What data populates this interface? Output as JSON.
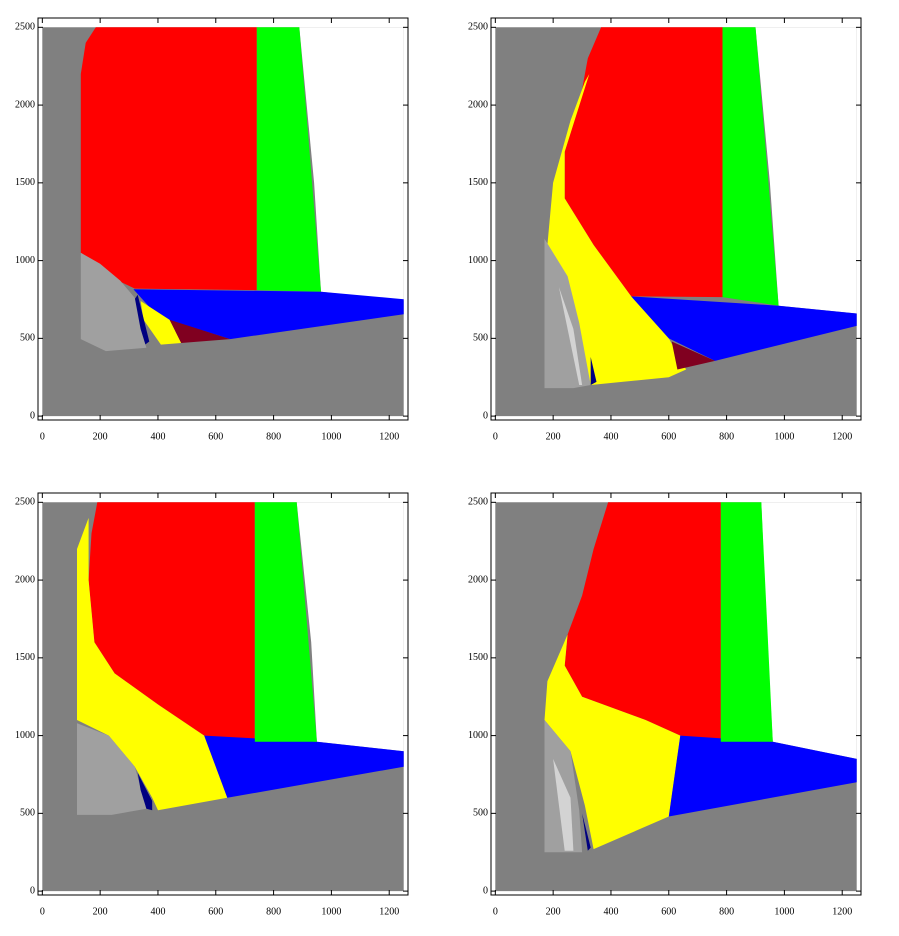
{
  "chart_data": [
    {
      "type": "region",
      "xlim": [
        -15,
        1265
      ],
      "ylim": [
        -25,
        2560
      ],
      "xticks": [
        0,
        200,
        400,
        600,
        800,
        1000,
        1200
      ],
      "yticks": [
        0,
        500,
        1000,
        1500,
        2000,
        2500
      ],
      "regions": [
        {
          "color": "#808080",
          "x": [
            0,
            1250,
            1250,
            0
          ],
          "y": [
            0,
            0,
            2500,
            2500
          ]
        },
        {
          "color": "#ffffff",
          "x": [
            889,
            1250,
            1250,
            964,
            940
          ],
          "y": [
            2500,
            2500,
            740,
            800,
            1500
          ]
        },
        {
          "color": "#ff0000",
          "x": [
            133,
            133,
            150,
            185,
            742,
            742,
            320,
            230
          ],
          "y": [
            1050,
            2200,
            2400,
            2500,
            2500,
            810,
            820,
            900
          ]
        },
        {
          "color": "#00ff00",
          "x": [
            742,
            889,
            964,
            742
          ],
          "y": [
            2500,
            2500,
            800,
            810
          ]
        },
        {
          "color": "#0000ff",
          "x": [
            315,
            964,
            1250,
            1250,
            650,
            400
          ],
          "y": [
            816,
            800,
            752,
            655,
            495,
            640
          ]
        },
        {
          "color": "#800020",
          "x": [
            440,
            650,
            480
          ],
          "y": [
            620,
            495,
            470
          ]
        },
        {
          "color": "#ffff00",
          "x": [
            340,
            440,
            480,
            410,
            350
          ],
          "y": [
            740,
            620,
            470,
            460,
            620
          ]
        },
        {
          "color": "#000080",
          "x": [
            330,
            370,
            345,
            300
          ],
          "y": [
            780,
            480,
            445,
            700
          ]
        },
        {
          "color": "#a0a0a0",
          "x": [
            133,
            200,
            270,
            320,
            340,
            360,
            220,
            133
          ],
          "y": [
            1050,
            980,
            870,
            760,
            560,
            440,
            418,
            495
          ]
        }
      ]
    },
    {
      "type": "region",
      "xlim": [
        -15,
        1265
      ],
      "ylim": [
        -25,
        2560
      ],
      "xticks": [
        0,
        200,
        400,
        600,
        800,
        1000,
        1200
      ],
      "yticks": [
        0,
        500,
        1000,
        1500,
        2000,
        2500
      ],
      "regions": [
        {
          "color": "#808080",
          "x": [
            0,
            1250,
            1250,
            0
          ],
          "y": [
            0,
            0,
            2500,
            2500
          ]
        },
        {
          "color": "#ffffff",
          "x": [
            900,
            1250,
            1250,
            980,
            950
          ],
          "y": [
            2500,
            2500,
            660,
            710,
            1500
          ]
        },
        {
          "color": "#ff0000",
          "x": [
            366,
            786,
            786,
            470,
            340,
            240,
            240,
            290,
            310,
            320
          ],
          "y": [
            2500,
            2500,
            765,
            770,
            1100,
            1400,
            1700,
            2000,
            2200,
            2300
          ]
        },
        {
          "color": "#ffff00",
          "x": [
            325,
            240,
            240,
            340,
            470,
            600,
            660,
            600,
            330,
            310,
            270,
            180,
            200,
            260,
            310
          ],
          "y": [
            2200,
            1700,
            1400,
            1100,
            770,
            500,
            300,
            250,
            200,
            300,
            700,
            1100,
            1500,
            1900,
            2150
          ]
        },
        {
          "color": "#00ff00",
          "x": [
            786,
            900,
            980,
            786
          ],
          "y": [
            2500,
            2500,
            710,
            765
          ]
        },
        {
          "color": "#0000ff",
          "x": [
            470,
            980,
            1250,
            1250,
            760,
            600
          ],
          "y": [
            770,
            710,
            660,
            580,
            355,
            500
          ]
        },
        {
          "color": "#800020",
          "x": [
            610,
            760,
            630
          ],
          "y": [
            480,
            355,
            300
          ]
        },
        {
          "color": "#a0a0a0",
          "x": [
            170,
            250,
            290,
            330,
            270,
            170
          ],
          "y": [
            1140,
            900,
            600,
            200,
            180,
            180
          ]
        },
        {
          "color": "#d3d3d3",
          "x": [
            220,
            270,
            300,
            290
          ],
          "y": [
            830,
            560,
            200,
            200
          ]
        },
        {
          "color": "#000080",
          "x": [
            330,
            350,
            330
          ],
          "y": [
            380,
            220,
            200
          ]
        }
      ]
    },
    {
      "type": "region",
      "xlim": [
        -15,
        1265
      ],
      "ylim": [
        -25,
        2560
      ],
      "xticks": [
        0,
        200,
        400,
        600,
        800,
        1000,
        1200
      ],
      "yticks": [
        0,
        500,
        1000,
        1500,
        2000,
        2500
      ],
      "regions": [
        {
          "color": "#808080",
          "x": [
            0,
            1250,
            1250,
            0
          ],
          "y": [
            0,
            0,
            2500,
            2500
          ]
        },
        {
          "color": "#ffffff",
          "x": [
            880,
            1250,
            1250,
            950,
            930
          ],
          "y": [
            2500,
            2500,
            900,
            960,
            1600
          ]
        },
        {
          "color": "#ff0000",
          "x": [
            190,
            735,
            735,
            560,
            400,
            250,
            180,
            160,
            170
          ],
          "y": [
            2500,
            2500,
            960,
            1000,
            1200,
            1400,
            1600,
            2000,
            2300
          ]
        },
        {
          "color": "#ffff00",
          "x": [
            160,
            120,
            120,
            230,
            320,
            380,
            400,
            640,
            560,
            400,
            250,
            180,
            160
          ],
          "y": [
            2400,
            2200,
            1100,
            1000,
            800,
            600,
            520,
            600,
            1000,
            1200,
            1400,
            1600,
            2000
          ]
        },
        {
          "color": "#0000ff",
          "x": [
            560,
            950,
            1250,
            1250,
            640
          ],
          "y": [
            1000,
            960,
            900,
            800,
            600
          ]
        },
        {
          "color": "#00ff00",
          "x": [
            735,
            880,
            950,
            735
          ],
          "y": [
            2500,
            2500,
            960,
            960
          ]
        },
        {
          "color": "#a0a0a0",
          "x": [
            120,
            230,
            320,
            360,
            240,
            120
          ],
          "y": [
            1080,
            1000,
            800,
            530,
            490,
            490
          ]
        },
        {
          "color": "#000080",
          "x": [
            330,
            380,
            380,
            360,
            340
          ],
          "y": [
            760,
            580,
            520,
            530,
            650
          ]
        }
      ]
    },
    {
      "type": "region",
      "xlim": [
        -15,
        1265
      ],
      "ylim": [
        -25,
        2560
      ],
      "xticks": [
        0,
        200,
        400,
        600,
        800,
        1000,
        1200
      ],
      "yticks": [
        0,
        500,
        1000,
        1500,
        2000,
        2500
      ],
      "regions": [
        {
          "color": "#808080",
          "x": [
            0,
            1250,
            1250,
            0
          ],
          "y": [
            0,
            0,
            2500,
            2500
          ]
        },
        {
          "color": "#ffffff",
          "x": [
            920,
            1250,
            1250,
            960,
            940
          ],
          "y": [
            2500,
            2500,
            850,
            960,
            1600
          ]
        },
        {
          "color": "#ff0000",
          "x": [
            390,
            780,
            780,
            640,
            520,
            300,
            240,
            250,
            300,
            340
          ],
          "y": [
            2500,
            2500,
            960,
            1000,
            1100,
            1250,
            1450,
            1650,
            1900,
            2200
          ]
        },
        {
          "color": "#ffff00",
          "x": [
            250,
            180,
            170,
            260,
            310,
            340,
            600,
            640,
            520,
            300,
            240
          ],
          "y": [
            1650,
            1350,
            1100,
            900,
            550,
            270,
            480,
            1000,
            1100,
            1250,
            1450
          ]
        },
        {
          "color": "#0000ff",
          "x": [
            640,
            960,
            1250,
            1250,
            600
          ],
          "y": [
            1000,
            960,
            850,
            700,
            480
          ]
        },
        {
          "color": "#00ff00",
          "x": [
            780,
            920,
            960,
            780
          ],
          "y": [
            2500,
            2500,
            960,
            960
          ]
        },
        {
          "color": "#a0a0a0",
          "x": [
            170,
            260,
            290,
            300,
            170
          ],
          "y": [
            1100,
            900,
            520,
            250,
            250
          ]
        },
        {
          "color": "#d3d3d3",
          "x": [
            200,
            260,
            270,
            240
          ],
          "y": [
            850,
            600,
            260,
            260
          ]
        },
        {
          "color": "#000080",
          "x": [
            300,
            330,
            320
          ],
          "y": [
            500,
            280,
            260
          ]
        }
      ]
    }
  ]
}
